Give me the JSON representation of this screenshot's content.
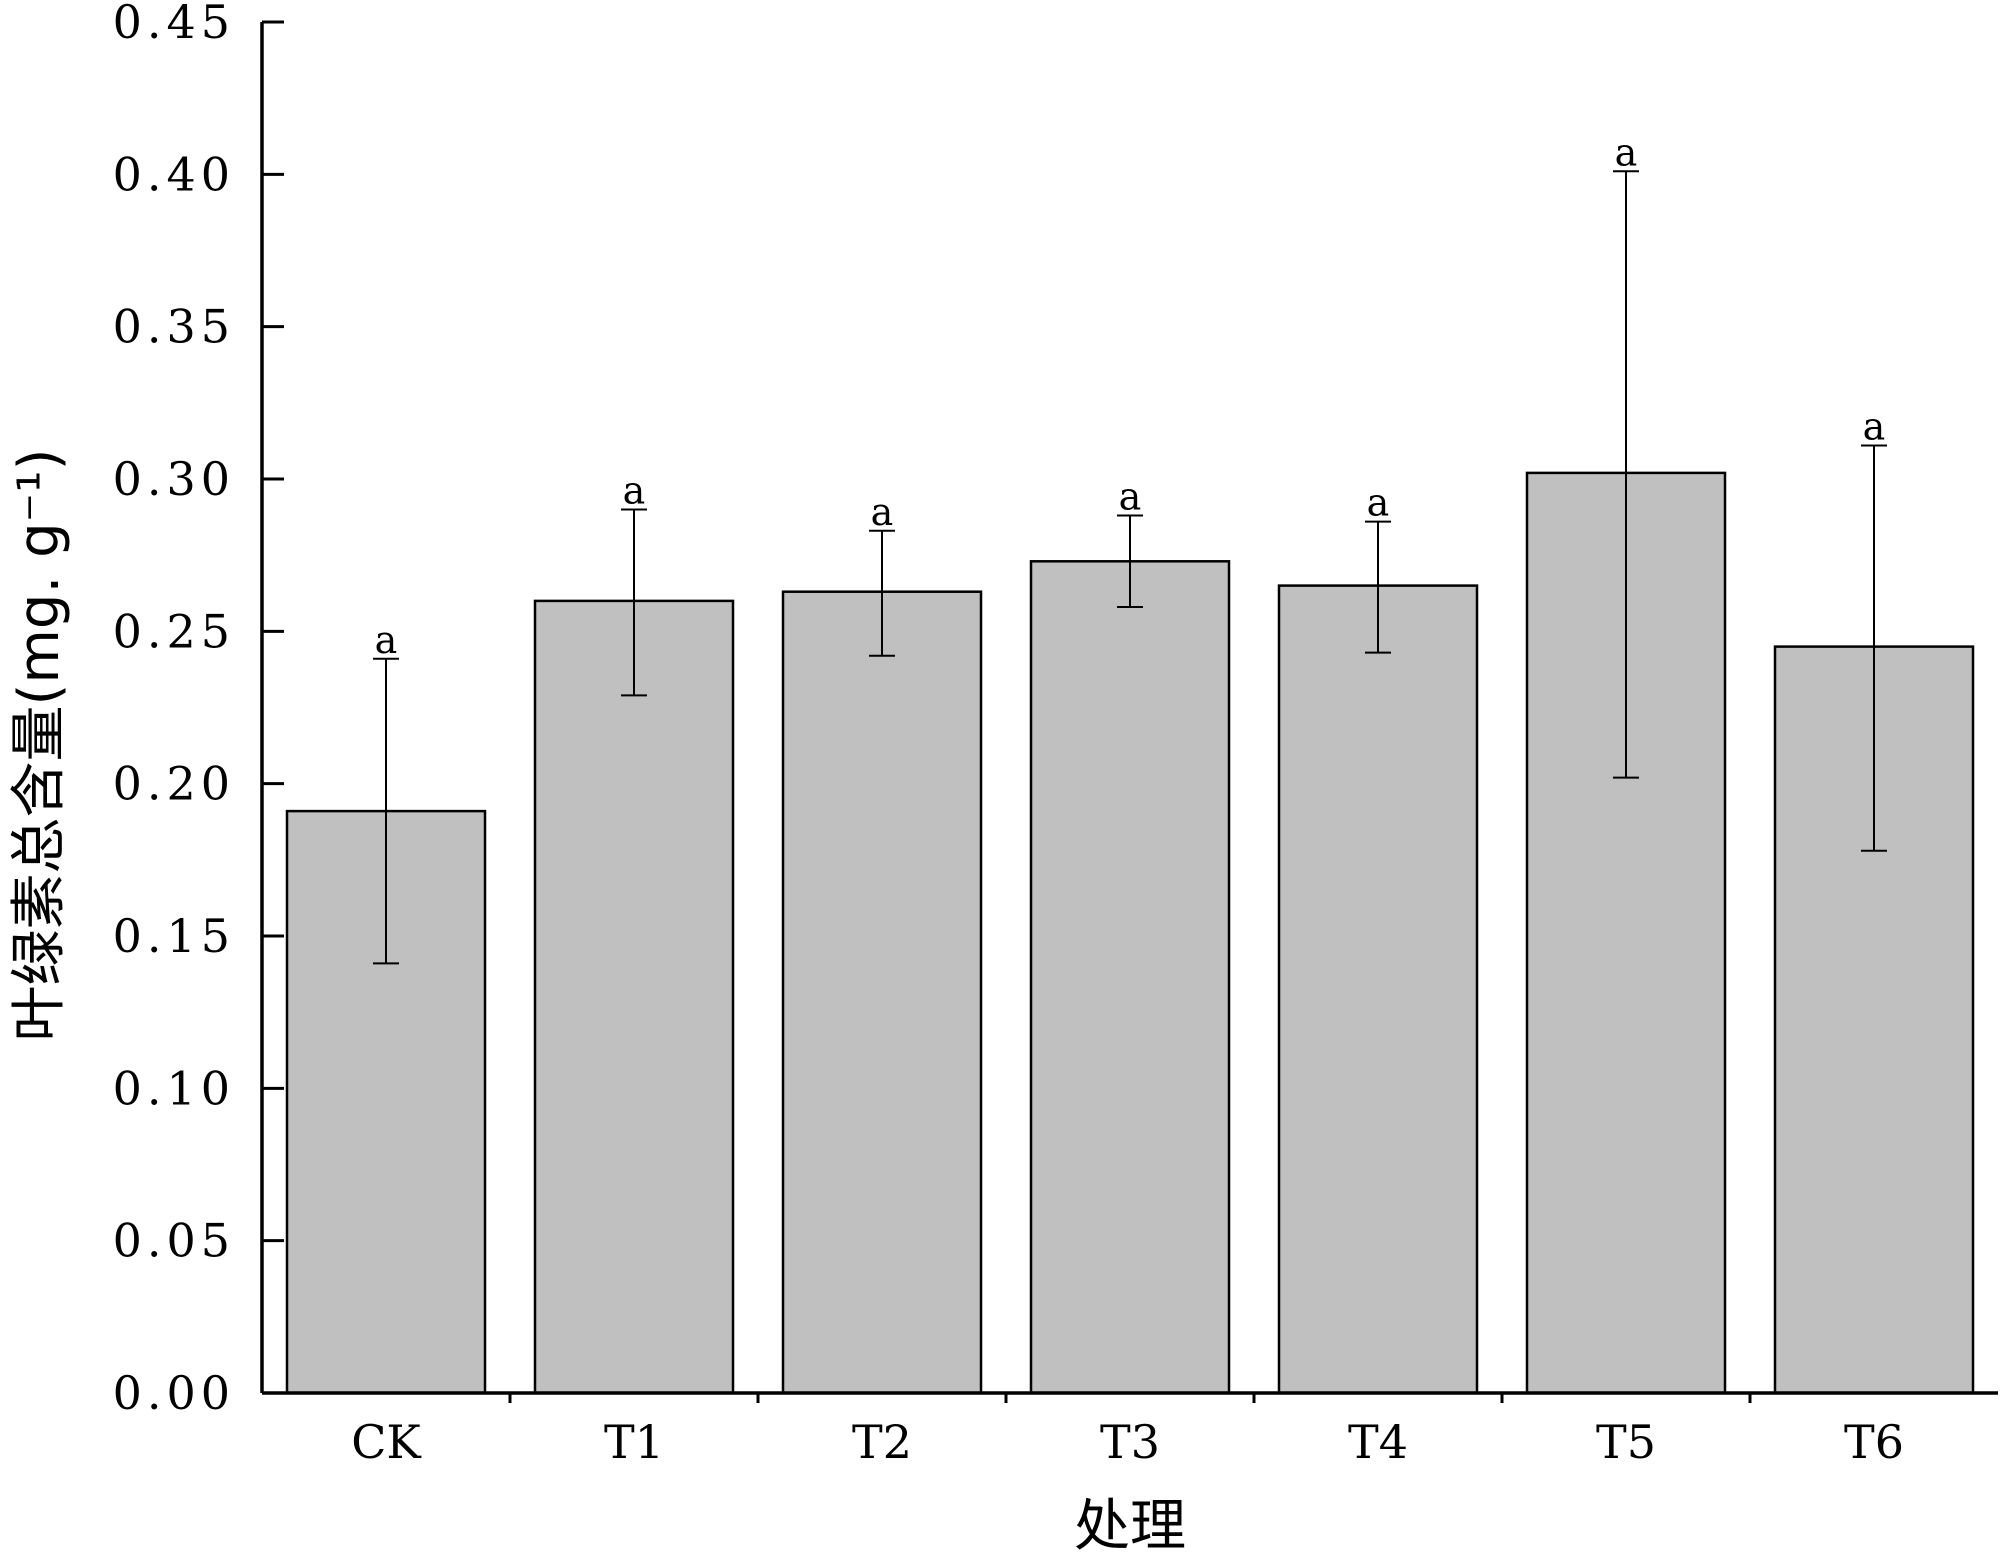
{
  "chart_data": {
    "type": "bar",
    "title": "",
    "xlabel": "处理",
    "ylabel": "叶绿素总含量(mg. g⁻¹)",
    "ylim": [
      0,
      0.45
    ],
    "yticks": [
      "0.00",
      "0.05",
      "0.10",
      "0.15",
      "0.20",
      "0.25",
      "0.30",
      "0.35",
      "0.40",
      "0.45"
    ],
    "categories": [
      "CK",
      "T1",
      "T2",
      "T3",
      "T4",
      "T5",
      "T6"
    ],
    "values": [
      0.191,
      0.26,
      0.263,
      0.273,
      0.265,
      0.302,
      0.245
    ],
    "error_low": [
      0.141,
      0.229,
      0.242,
      0.258,
      0.243,
      0.202,
      0.178
    ],
    "error_high": [
      0.241,
      0.29,
      0.283,
      0.288,
      0.286,
      0.401,
      0.311
    ],
    "significance": [
      "a",
      "a",
      "a",
      "a",
      "a",
      "a",
      "a"
    ],
    "grid": false,
    "legend": "none",
    "bar_color": "#c0c0c0",
    "edge_color": "#000000"
  }
}
